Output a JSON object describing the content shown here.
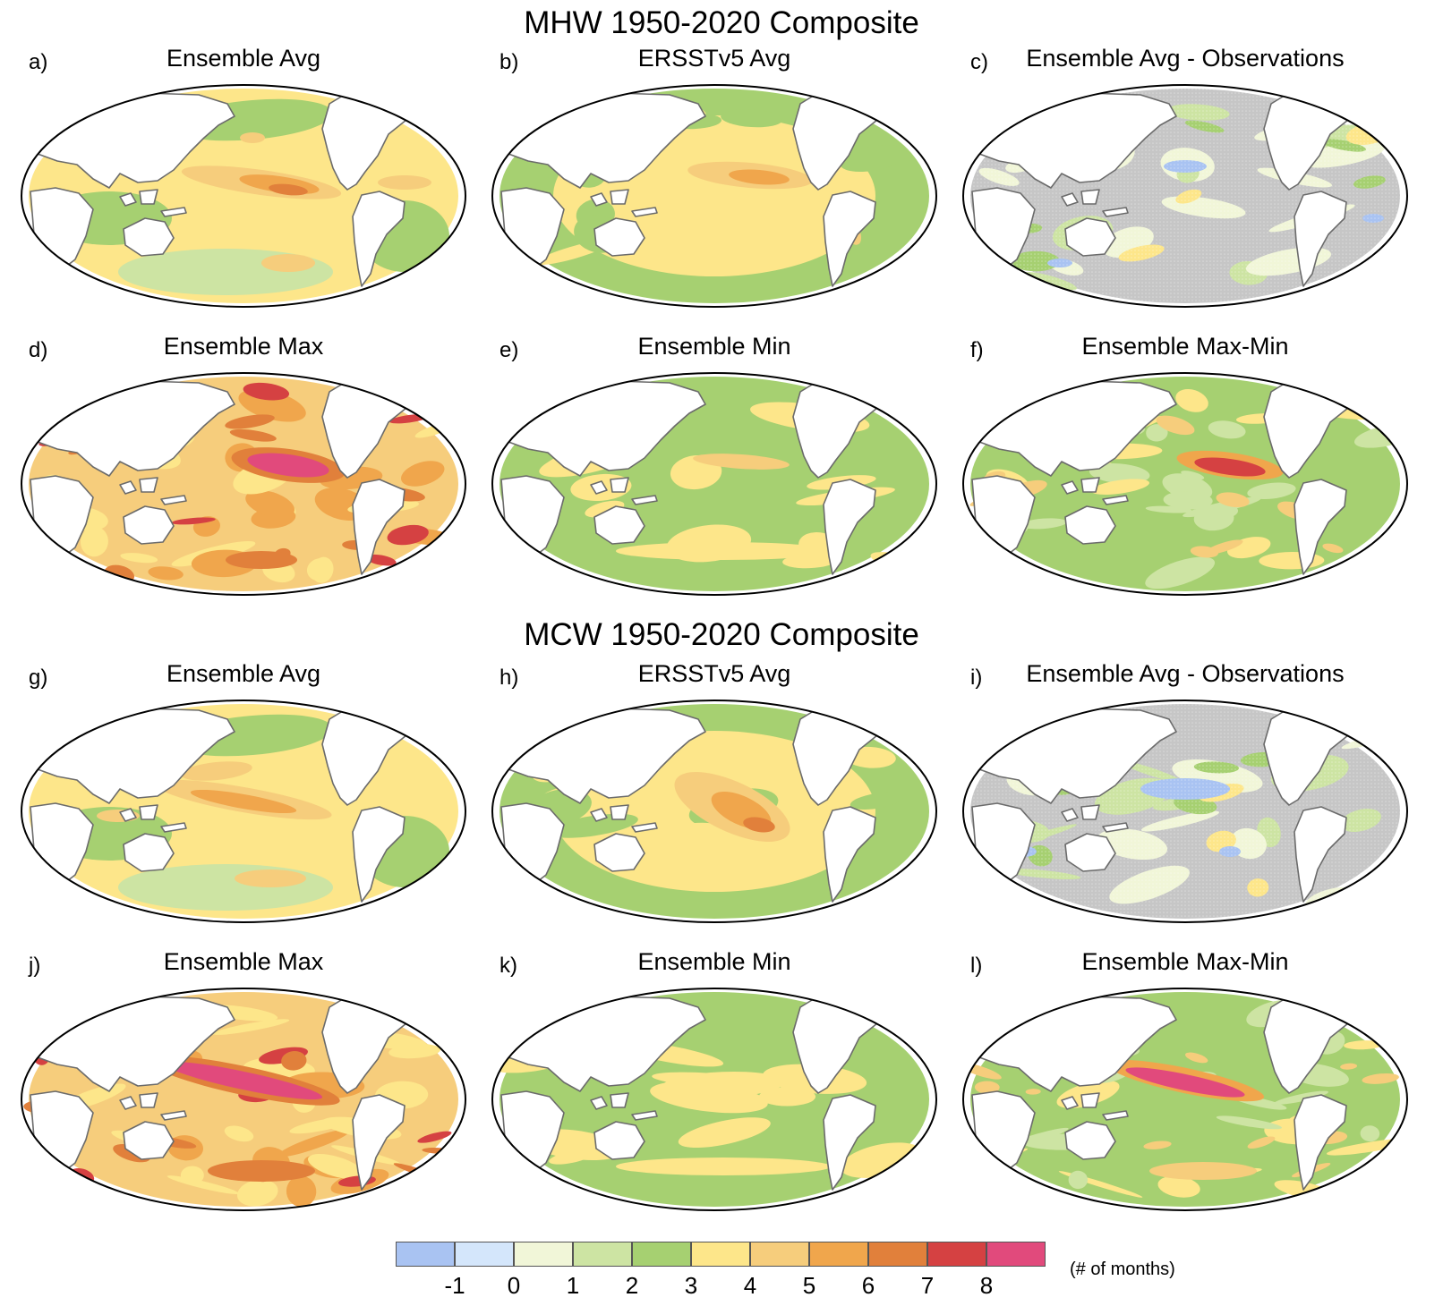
{
  "figure": {
    "sections": [
      {
        "title": "MHW 1950-2020 Composite",
        "panels": [
          {
            "letter": "a)",
            "title": "Ensemble Avg",
            "style": "avg"
          },
          {
            "letter": "b)",
            "title": "ERSSTv5 Avg",
            "style": "obs"
          },
          {
            "letter": "c)",
            "title": "Ensemble Avg - Observations",
            "style": "diff"
          },
          {
            "letter": "d)",
            "title": "Ensemble Max",
            "style": "max"
          },
          {
            "letter": "e)",
            "title": "Ensemble Min",
            "style": "min"
          },
          {
            "letter": "f)",
            "title": "Ensemble Max-Min",
            "style": "range"
          }
        ]
      },
      {
        "title": "MCW 1950-2020 Composite",
        "panels": [
          {
            "letter": "g)",
            "title": "Ensemble Avg",
            "style": "avg"
          },
          {
            "letter": "h)",
            "title": "ERSSTv5 Avg",
            "style": "obs"
          },
          {
            "letter": "i)",
            "title": "Ensemble Avg - Observations",
            "style": "diff"
          },
          {
            "letter": "j)",
            "title": "Ensemble Max",
            "style": "max"
          },
          {
            "letter": "k)",
            "title": "Ensemble Min",
            "style": "min"
          },
          {
            "letter": "l)",
            "title": "Ensemble Max-Min",
            "style": "range"
          }
        ]
      }
    ]
  },
  "colorbar": {
    "colors": [
      "#a9c3f2",
      "#d4e6fb",
      "#f1f6d8",
      "#cde4a3",
      "#a6d071",
      "#fde68a",
      "#f6cd7c",
      "#f0a64c",
      "#e1803b",
      "#d54142",
      "#e14a7c"
    ],
    "labels": [
      "-1",
      "0",
      "1",
      "2",
      "3",
      "4",
      "5",
      "6",
      "7",
      "8"
    ],
    "unit": "(# of months)"
  },
  "palette": {
    "land": "#ffffff",
    "coast": "#6b6b6b",
    "gray": "#c6c6c6",
    "stipple": "#d6d6d6"
  }
}
